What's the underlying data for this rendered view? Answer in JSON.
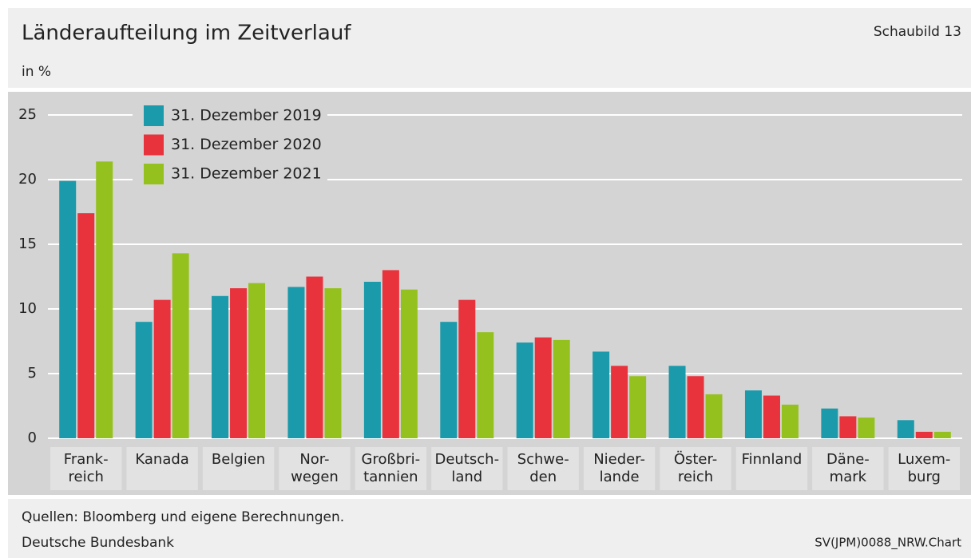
{
  "chart_data": {
    "type": "bar",
    "title": "Länderaufteilung im Zeitverlauf",
    "figure_label": "Schaubild 13",
    "y_axis_label": "in %",
    "source": "Quellen: Bloomberg und eigene Berechnungen.",
    "publisher": "Deutsche Bundesbank",
    "chart_id": "SV(JPM)0088_NRW.Chart",
    "categories": [
      "Frank-\nreich",
      "Kanada",
      "Belgien",
      "Nor-\nwegen",
      "Großbri-\ntannien",
      "Deutsch-\nland",
      "Schwe-\nden",
      "Nieder-\nlande",
      "Öster-\nreich",
      "Finnland",
      "Däne-\nmark",
      "Luxem-\nburg"
    ],
    "series": [
      {
        "name": "31. Dezember 2019",
        "color": "#1a9aaa",
        "values": [
          19.9,
          9.0,
          11.0,
          11.7,
          12.1,
          9.0,
          7.4,
          6.7,
          5.6,
          3.7,
          2.3,
          1.4
        ]
      },
      {
        "name": "31. Dezember 2020",
        "color": "#e8323c",
        "values": [
          17.4,
          10.7,
          11.6,
          12.5,
          13.0,
          10.7,
          7.8,
          5.6,
          4.8,
          3.3,
          1.7,
          0.5
        ]
      },
      {
        "name": "31. Dezember 2021",
        "color": "#95c11f",
        "values": [
          21.4,
          14.3,
          12.0,
          11.6,
          11.5,
          8.2,
          7.6,
          4.8,
          3.4,
          2.6,
          1.6,
          0.5
        ]
      }
    ],
    "ylim": [
      0,
      25
    ],
    "yticks": [
      0,
      5,
      10,
      15,
      20,
      25
    ],
    "grid": true,
    "legend": "upper left"
  }
}
